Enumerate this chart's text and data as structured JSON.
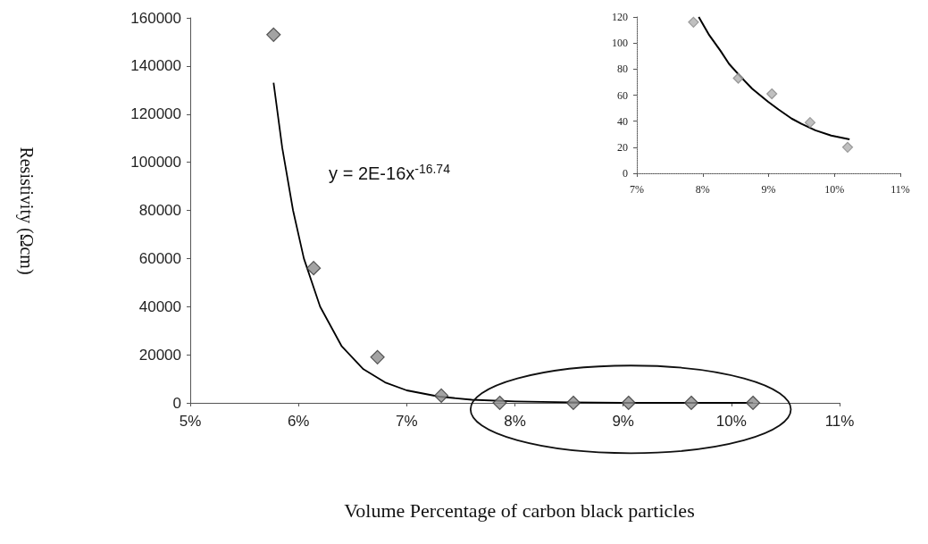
{
  "chart_data": [
    {
      "type": "scatter",
      "xlabel": "Volume Percentage of carbon black particles",
      "ylabel": "Resistivity (Ωcm)",
      "annotations": [
        "y = 2E-16x$^{-16.74}$"
      ],
      "xlim": [
        5,
        11
      ],
      "xticks": [
        {
          "value": 5,
          "label": "5%"
        },
        {
          "value": 6,
          "label": "6%"
        },
        {
          "value": 7,
          "label": "7%"
        },
        {
          "value": 8,
          "label": "8%"
        },
        {
          "value": 9,
          "label": "9%"
        },
        {
          "value": 10,
          "label": "10%"
        },
        {
          "value": 11,
          "label": "11%"
        }
      ],
      "ylim": [
        0,
        160000
      ],
      "yticks": [
        0,
        20000,
        40000,
        60000,
        80000,
        100000,
        120000,
        140000,
        160000
      ],
      "grid": false,
      "marker": "diamond",
      "series": [
        {
          "type": "scatter",
          "color": "#8c8c8c",
          "x": [
            5.77,
            6.14,
            6.73,
            7.32,
            7.86,
            8.54,
            9.05,
            9.63,
            10.2
          ],
          "values": [
            153000,
            56000,
            19000,
            3000,
            0,
            0,
            0,
            0,
            0
          ]
        },
        {
          "type": "line",
          "color": "#000000",
          "marker": "none",
          "x": [
            5.77,
            5.85,
            5.95,
            6.05,
            6.2,
            6.4,
            6.6,
            6.8,
            7.0,
            7.3,
            7.6,
            8.0,
            8.5,
            9.0,
            10.2
          ],
          "values": [
            133000,
            106000,
            80000,
            60000,
            40000,
            23500,
            14000,
            8500,
            5200,
            2600,
            1300,
            600,
            200,
            0,
            0
          ]
        }
      ]
    },
    {
      "type": "scatter",
      "xlim": [
        7,
        11
      ],
      "xticks": [
        {
          "value": 7,
          "label": "7%"
        },
        {
          "value": 8,
          "label": "8%"
        },
        {
          "value": 9,
          "label": "9%"
        },
        {
          "value": 10,
          "label": "10%"
        },
        {
          "value": 11,
          "label": "11%"
        }
      ],
      "ylim": [
        0,
        120
      ],
      "yticks": [
        0,
        20,
        40,
        60,
        80,
        100,
        120
      ],
      "grid": false,
      "marker": "diamond",
      "series": [
        {
          "type": "scatter",
          "color": "#b0b0b0",
          "x": [
            7.86,
            8.54,
            9.05,
            9.63,
            10.2
          ],
          "values": [
            116,
            73,
            61,
            39,
            20
          ]
        },
        {
          "type": "line",
          "color": "#000000",
          "marker": "none",
          "x": [
            7.94,
            8.1,
            8.27,
            8.4,
            8.56,
            8.75,
            8.99,
            9.15,
            9.35,
            9.5,
            9.71,
            9.95,
            10.23
          ],
          "values": [
            120,
            106,
            94,
            84,
            75,
            65,
            55,
            49,
            42,
            38,
            33,
            29,
            26
          ]
        }
      ]
    }
  ]
}
